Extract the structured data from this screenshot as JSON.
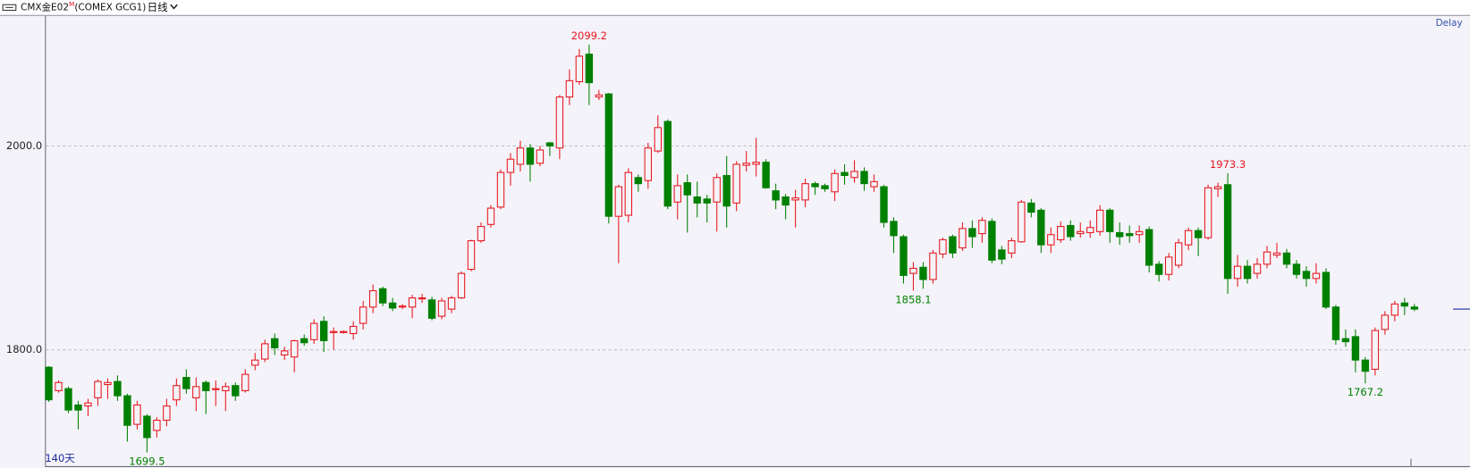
{
  "chart_data": {
    "type": "candlestick",
    "title": "CMX金E02",
    "title_superscript": "M",
    "subtitle": "(COMEX GCG1)",
    "period": "日线",
    "status": "Delay",
    "range_label": "140天",
    "up_color": "#e8141c",
    "down_color": "#008000",
    "grid": true,
    "ylim": [
      1686,
      2127.5
    ],
    "yticks": [
      {
        "value": 1800,
        "label": "1800.0"
      },
      {
        "value": 2000,
        "label": "2000.0"
      }
    ],
    "candles": [
      [
        1783,
        1784,
        1749,
        1751
      ],
      [
        1760,
        1770,
        1758,
        1768
      ],
      [
        1762,
        1764,
        1738,
        1741
      ],
      [
        1746,
        1750,
        1722,
        1741
      ],
      [
        1745,
        1752,
        1735,
        1748
      ],
      [
        1753,
        1771,
        1745,
        1769
      ],
      [
        1766,
        1772,
        1752,
        1768
      ],
      [
        1769,
        1775,
        1750,
        1755
      ],
      [
        1755,
        1757,
        1710,
        1726
      ],
      [
        1727,
        1750,
        1722,
        1746
      ],
      [
        1735,
        1737,
        1699.5,
        1714
      ],
      [
        1721,
        1734,
        1714,
        1731
      ],
      [
        1731,
        1752,
        1725,
        1745
      ],
      [
        1751,
        1772,
        1745,
        1765
      ],
      [
        1773,
        1781,
        1757,
        1762
      ],
      [
        1753,
        1773,
        1740,
        1764
      ],
      [
        1768,
        1770,
        1737,
        1760
      ],
      [
        1761,
        1770,
        1745,
        1762
      ],
      [
        1760,
        1768,
        1740,
        1764
      ],
      [
        1765,
        1768,
        1750,
        1755
      ],
      [
        1760,
        1781,
        1758,
        1776
      ],
      [
        1785,
        1797,
        1780,
        1790
      ],
      [
        1791,
        1810,
        1788,
        1806
      ],
      [
        1811,
        1816,
        1795,
        1802
      ],
      [
        1795,
        1803,
        1790,
        1799
      ],
      [
        1793,
        1810,
        1778,
        1809
      ],
      [
        1811,
        1815,
        1804,
        1807
      ],
      [
        1810,
        1830,
        1806,
        1826
      ],
      [
        1828,
        1833,
        1798,
        1809
      ],
      [
        1817,
        1822,
        1800,
        1818
      ],
      [
        1817,
        1819,
        1816,
        1818
      ],
      [
        1816,
        1828,
        1810,
        1823
      ],
      [
        1826,
        1848,
        1820,
        1842
      ],
      [
        1842,
        1864,
        1836,
        1858
      ],
      [
        1860,
        1862,
        1843,
        1846
      ],
      [
        1846,
        1851,
        1838,
        1841
      ],
      [
        1842,
        1845,
        1840,
        1843
      ],
      [
        1842,
        1854,
        1831,
        1851
      ],
      [
        1850,
        1855,
        1846,
        1851
      ],
      [
        1849,
        1852,
        1829,
        1831
      ],
      [
        1833,
        1851,
        1830,
        1848
      ],
      [
        1840,
        1853,
        1836,
        1851
      ],
      [
        1851,
        1877,
        1850,
        1875
      ],
      [
        1879,
        1908,
        1877,
        1907
      ],
      [
        1907,
        1925,
        1905,
        1921
      ],
      [
        1923,
        1942,
        1920,
        1939
      ],
      [
        1940,
        1977,
        1938,
        1974
      ],
      [
        1974,
        1993,
        1961,
        1987
      ],
      [
        1982,
        2005,
        1975,
        1998
      ],
      [
        1998,
        2002,
        1965,
        1982
      ],
      [
        1983,
        2000,
        1980,
        1996
      ],
      [
        2003,
        2004,
        1990,
        2000
      ],
      [
        1998,
        2050,
        1987,
        2048
      ],
      [
        2048,
        2075,
        2040,
        2064
      ],
      [
        2063,
        2095,
        2060,
        2088
      ],
      [
        2090,
        2099.2,
        2040,
        2062
      ],
      [
        2048,
        2055,
        2045,
        2050
      ],
      [
        2051,
        2052,
        1924,
        1931
      ],
      [
        1931,
        1962,
        1885,
        1960
      ],
      [
        1932,
        1978,
        1925,
        1974
      ],
      [
        1969,
        1972,
        1955,
        1963
      ],
      [
        1966,
        2003,
        1958,
        1998
      ],
      [
        1995,
        2030,
        1993,
        2018
      ],
      [
        2024,
        2026,
        1938,
        1941
      ],
      [
        1945,
        1972,
        1928,
        1961
      ],
      [
        1964,
        1972,
        1915,
        1952
      ],
      [
        1950,
        1965,
        1930,
        1944
      ],
      [
        1948,
        1952,
        1925,
        1944
      ],
      [
        1945,
        1973,
        1916,
        1969
      ],
      [
        1971,
        1990,
        1920,
        1941
      ],
      [
        1944,
        1985,
        1936,
        1982
      ],
      [
        1981,
        1995,
        1975,
        1983
      ],
      [
        1982,
        2008,
        1970,
        1984
      ],
      [
        1984,
        1987,
        1958,
        1959
      ],
      [
        1956,
        1963,
        1938,
        1947
      ],
      [
        1950,
        1953,
        1928,
        1942
      ],
      [
        1947,
        1957,
        1920,
        1949
      ],
      [
        1947,
        1968,
        1940,
        1963
      ],
      [
        1963,
        1965,
        1952,
        1960
      ],
      [
        1961,
        1963,
        1955,
        1958
      ],
      [
        1955,
        1977,
        1946,
        1973
      ],
      [
        1974,
        1982,
        1962,
        1971
      ],
      [
        1969,
        1986,
        1964,
        1975
      ],
      [
        1975,
        1979,
        1956,
        1963
      ],
      [
        1960,
        1972,
        1955,
        1965
      ],
      [
        1960,
        1962,
        1920,
        1925
      ],
      [
        1926,
        1930,
        1895,
        1912
      ],
      [
        1911,
        1913,
        1865,
        1873
      ],
      [
        1875,
        1886,
        1858.1,
        1880
      ],
      [
        1881,
        1886,
        1860,
        1869
      ],
      [
        1869,
        1898,
        1865,
        1895
      ],
      [
        1894,
        1910,
        1890,
        1908
      ],
      [
        1911,
        1913,
        1890,
        1895
      ],
      [
        1900,
        1925,
        1897,
        1919
      ],
      [
        1919,
        1927,
        1900,
        1911
      ],
      [
        1914,
        1930,
        1905,
        1927
      ],
      [
        1926,
        1929,
        1885,
        1888
      ],
      [
        1898,
        1902,
        1884,
        1889
      ],
      [
        1895,
        1910,
        1890,
        1907
      ],
      [
        1906,
        1947,
        1905,
        1945
      ],
      [
        1944,
        1948,
        1930,
        1935
      ],
      [
        1937,
        1939,
        1895,
        1903
      ],
      [
        1903,
        1920,
        1895,
        1913
      ],
      [
        1908,
        1926,
        1905,
        1921
      ],
      [
        1922,
        1927,
        1907,
        1911
      ],
      [
        1914,
        1925,
        1910,
        1916
      ],
      [
        1915,
        1927,
        1910,
        1920
      ],
      [
        1916,
        1942,
        1912,
        1937
      ],
      [
        1937,
        1939,
        1905,
        1916
      ],
      [
        1915,
        1925,
        1903,
        1911
      ],
      [
        1914,
        1922,
        1905,
        1912
      ],
      [
        1913,
        1922,
        1905,
        1916
      ],
      [
        1918,
        1921,
        1876,
        1883
      ],
      [
        1884,
        1887,
        1867,
        1874
      ],
      [
        1874,
        1895,
        1868,
        1891
      ],
      [
        1883,
        1909,
        1880,
        1905
      ],
      [
        1903,
        1920,
        1898,
        1917
      ],
      [
        1917,
        1920,
        1892,
        1910
      ],
      [
        1910,
        1962,
        1908,
        1959
      ],
      [
        1958,
        1964,
        1950,
        1960
      ],
      [
        1962,
        1973.3,
        1855,
        1870
      ],
      [
        1870,
        1893,
        1862,
        1882
      ],
      [
        1882,
        1888,
        1865,
        1870
      ],
      [
        1875,
        1890,
        1870,
        1884
      ],
      [
        1884,
        1902,
        1880,
        1896
      ],
      [
        1893,
        1905,
        1890,
        1895
      ],
      [
        1895,
        1899,
        1880,
        1884
      ],
      [
        1884,
        1888,
        1870,
        1874
      ],
      [
        1877,
        1882,
        1862,
        1870
      ],
      [
        1870,
        1885,
        1865,
        1875
      ],
      [
        1876,
        1880,
        1840,
        1842
      ],
      [
        1842,
        1844,
        1805,
        1810
      ],
      [
        1811,
        1820,
        1803,
        1808
      ],
      [
        1813,
        1820,
        1778,
        1790
      ],
      [
        1790,
        1793,
        1767.2,
        1779
      ],
      [
        1781,
        1822,
        1775,
        1819
      ],
      [
        1820,
        1838,
        1815,
        1834
      ],
      [
        1834,
        1848,
        1828,
        1845
      ],
      [
        1846,
        1851,
        1834,
        1843
      ],
      [
        1842,
        1845,
        1838,
        1840
      ]
    ]
  }
}
